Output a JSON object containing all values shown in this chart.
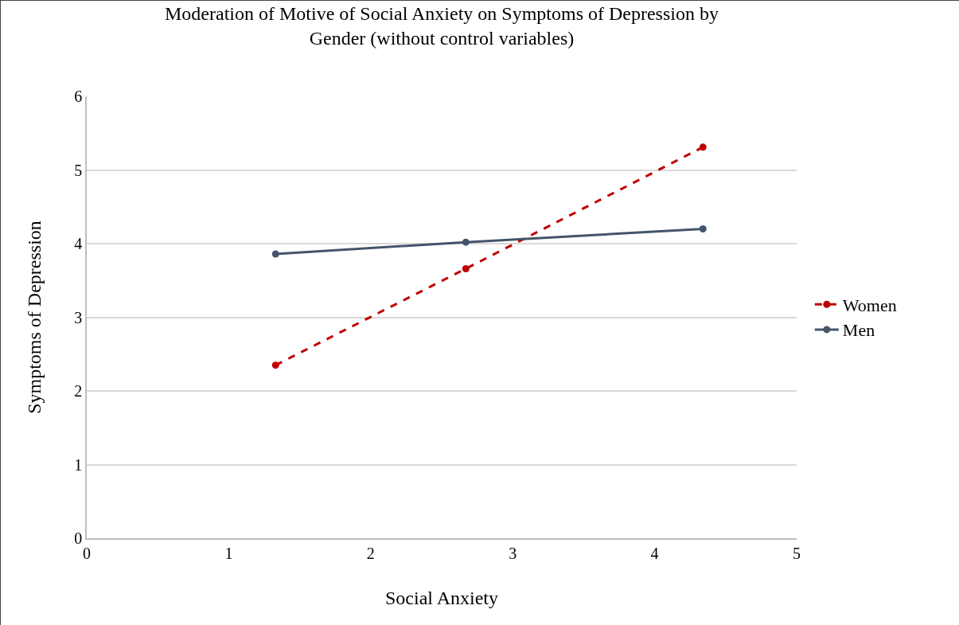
{
  "chart_data": {
    "type": "line",
    "title": "Moderation of Motive of Social Anxiety on Symptoms of Depression by Gender (without control variables)",
    "xlabel": "Social Anxiety",
    "ylabel": "Symptoms of Depression",
    "x": [
      1.33,
      2.67,
      4.34
    ],
    "series": [
      {
        "name": "Women",
        "color": "#c00000",
        "values": [
          2.35,
          3.66,
          5.31
        ],
        "line_style": "dashed"
      },
      {
        "name": "Men",
        "color": "#44546a",
        "values": [
          3.86,
          4.02,
          4.2
        ],
        "line_style": "solid"
      }
    ],
    "xlim": [
      0,
      5
    ],
    "xticks": [
      0,
      1,
      2,
      3,
      4,
      5
    ],
    "ylim": [
      0,
      6
    ],
    "yticks": [
      0,
      1,
      2,
      3,
      4,
      5,
      6
    ],
    "grid": "y",
    "legend": "right",
    "marker": "circle"
  }
}
